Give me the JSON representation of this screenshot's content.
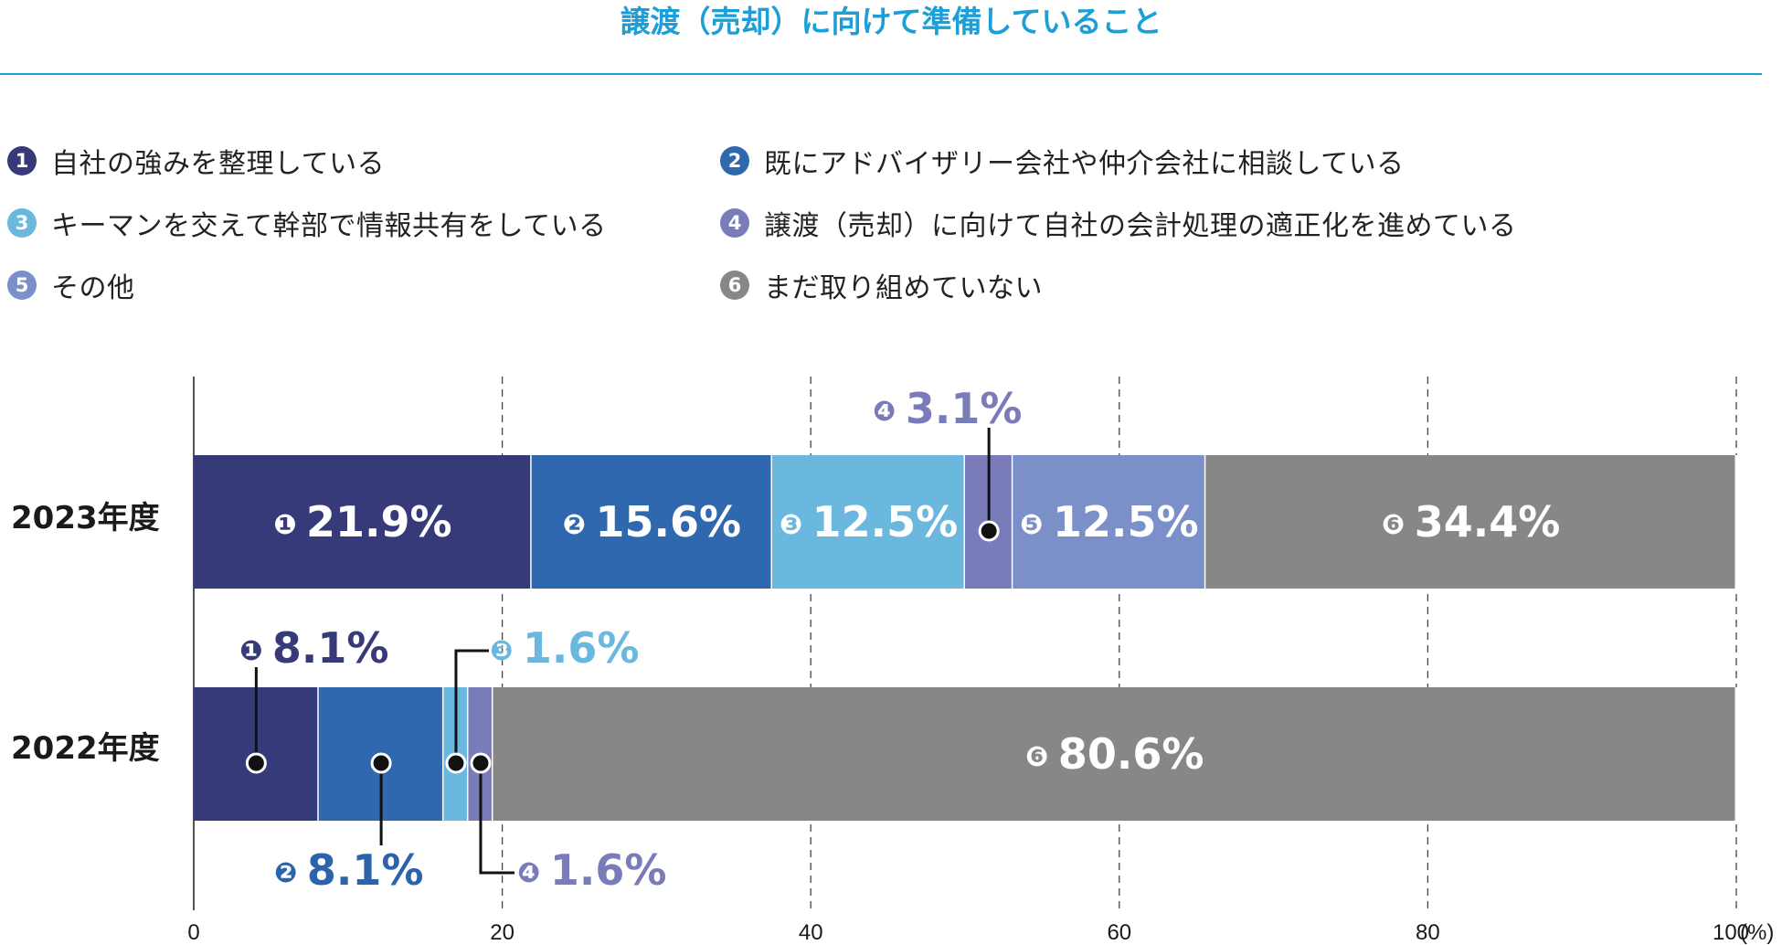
{
  "title": "譲渡（売却）に向けて準備していること",
  "colors": {
    "accent": "#1c9fd6",
    "c1": "#363a78",
    "c2": "#3068b0",
    "c3": "#6ab8dd",
    "c4": "#7a7cba",
    "c5": "#7b8fc9",
    "c6": "#878787",
    "c2_text": "#2c64ab"
  },
  "legend": [
    {
      "num": "1",
      "label": "自社の強みを整理している"
    },
    {
      "num": "2",
      "label": "既にアドバイザリー会社や仲介会社に相談している"
    },
    {
      "num": "3",
      "label": "キーマンを交えて幹部で情報共有をしている"
    },
    {
      "num": "4",
      "label": "譲渡（売却）に向けて自社の会計処理の適正化を進めている"
    },
    {
      "num": "5",
      "label": "その他"
    },
    {
      "num": "6",
      "label": "まだ取り組めていない"
    }
  ],
  "chart_data": {
    "type": "bar",
    "orientation": "horizontal",
    "stacked": true,
    "categories": [
      "2023年度",
      "2022年度"
    ],
    "series": [
      {
        "name": "自社の強みを整理している",
        "values": [
          21.9,
          8.1
        ]
      },
      {
        "name": "既にアドバイザリー会社や仲介会社に相談している",
        "values": [
          15.6,
          8.1
        ]
      },
      {
        "name": "キーマンを交えて幹部で情報共有をしている",
        "values": [
          12.5,
          1.6
        ]
      },
      {
        "name": "譲渡（売却）に向けて自社の会計処理の適正化を進めている",
        "values": [
          3.1,
          1.6
        ]
      },
      {
        "name": "その他",
        "values": [
          12.5,
          0
        ]
      },
      {
        "name": "まだ取り組めていない",
        "values": [
          34.4,
          80.6
        ]
      }
    ],
    "labels": [
      [
        "21.9%",
        "15.6%",
        "12.5%",
        "3.1%",
        "12.5%",
        "34.4%"
      ],
      [
        "8.1%",
        "8.1%",
        "1.6%",
        "1.6%",
        "",
        "80.6%"
      ]
    ],
    "xlim": [
      0,
      100
    ],
    "xticks": [
      "0",
      "20",
      "40",
      "60",
      "80",
      "100"
    ],
    "xunit": "(%)",
    "grid": true
  }
}
